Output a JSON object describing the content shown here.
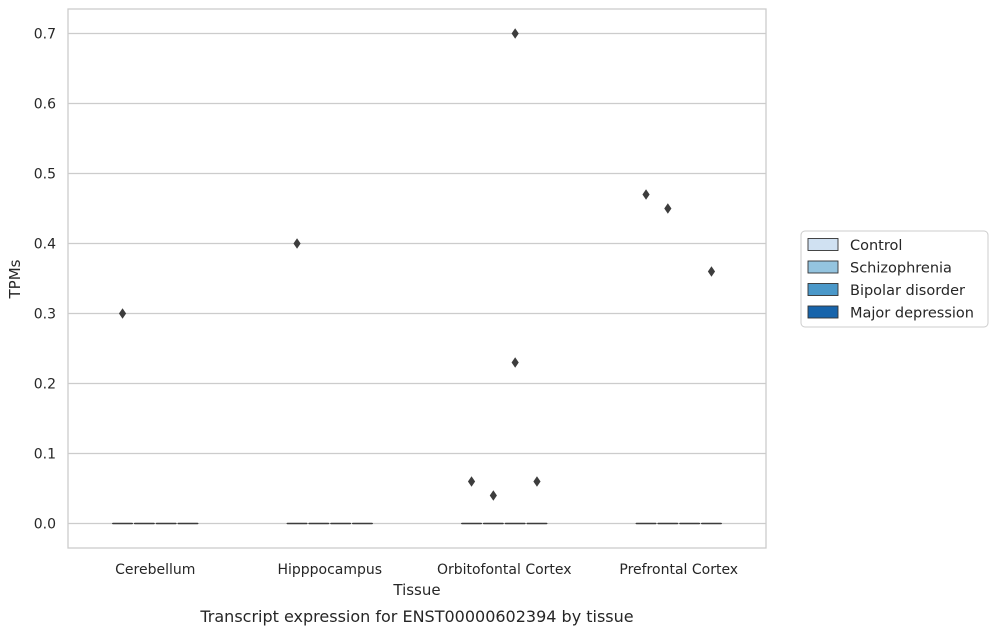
{
  "chart_data": {
    "type": "box",
    "title": "Transcript expression for ENST00000602394 by tissue",
    "xlabel": "Tissue",
    "ylabel": "TPMs",
    "categories": [
      "Cerebellum",
      "Hipppocampus",
      "Orbitofontal Cortex",
      "Prefrontal Cortex"
    ],
    "yticks": [
      0.0,
      0.1,
      0.2,
      0.3,
      0.4,
      0.5,
      0.6,
      0.7
    ],
    "ytick_labels": [
      "0.0",
      "0.1",
      "0.2",
      "0.3",
      "0.4",
      "0.5",
      "0.6",
      "0.7"
    ],
    "ylim": [
      -0.035,
      0.735
    ],
    "grid": "horizontal",
    "legend_placement": "right",
    "series": [
      {
        "name": "Control",
        "color": "#d0e1f2"
      },
      {
        "name": "Schizophrenia",
        "color": "#94c4df"
      },
      {
        "name": "Bipolar disorder",
        "color": "#4a98c9"
      },
      {
        "name": "Major depression",
        "color": "#1764ab"
      }
    ],
    "boxes": [
      {
        "category": "Cerebellum",
        "median": 0.0,
        "q1": 0.0,
        "q3": 0.0
      },
      {
        "category": "Hipppocampus",
        "median": 0.0,
        "q1": 0.0,
        "q3": 0.0
      },
      {
        "category": "Orbitofontal Cortex",
        "median": 0.0,
        "q1": 0.0,
        "q3": 0.0
      },
      {
        "category": "Prefrontal Cortex",
        "median": 0.0,
        "q1": 0.0,
        "q3": 0.0
      }
    ],
    "outliers": [
      {
        "category": "Cerebellum",
        "series": "Control",
        "y": 0.3
      },
      {
        "category": "Hipppocampus",
        "series": "Control",
        "y": 0.4
      },
      {
        "category": "Orbitofontal Cortex",
        "series": "Control",
        "y": 0.06
      },
      {
        "category": "Orbitofontal Cortex",
        "series": "Schizophrenia",
        "y": 0.04
      },
      {
        "category": "Orbitofontal Cortex",
        "series": "Bipolar disorder",
        "y": 0.7
      },
      {
        "category": "Orbitofontal Cortex",
        "series": "Bipolar disorder",
        "y": 0.23
      },
      {
        "category": "Orbitofontal Cortex",
        "series": "Major depression",
        "y": 0.06
      },
      {
        "category": "Prefrontal Cortex",
        "series": "Control",
        "y": 0.47
      },
      {
        "category": "Prefrontal Cortex",
        "series": "Schizophrenia",
        "y": 0.45
      },
      {
        "category": "Prefrontal Cortex",
        "series": "Major depression",
        "y": 0.36
      }
    ]
  }
}
